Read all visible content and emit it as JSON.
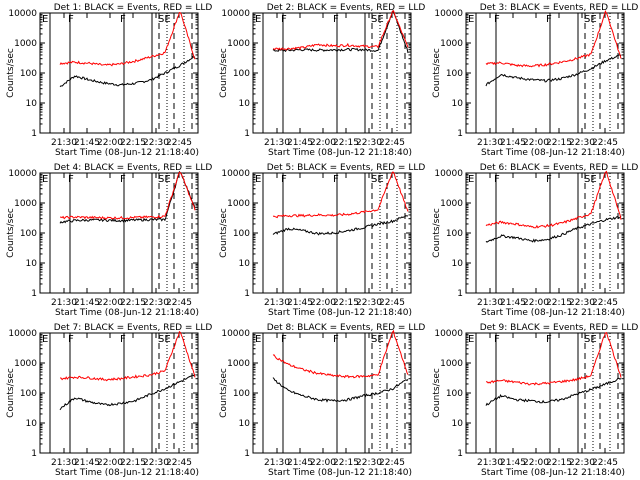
{
  "colors": {
    "events": "#000000",
    "lld": "#ff0000",
    "axis": "#000000"
  },
  "chart_data": [
    {
      "type": "line",
      "title": "Det 1: BLACK = Events, RED = LLD",
      "xlabel": "Start Time (08-Jun-12 21:18:40)",
      "ylabel": "Counts/sec",
      "yscale": "log",
      "ylim": [
        1,
        10000
      ],
      "x_ticks": [
        "21:30",
        "21:45",
        "22:00",
        "22:15",
        "22:30",
        "22:45"
      ],
      "y_ticks": [
        "1",
        "10",
        "100",
        "1000",
        "10000"
      ],
      "top_flags": [
        "E",
        "F",
        "F",
        "SE"
      ],
      "series": [
        {
          "key": "events",
          "values": [
            35,
            80,
            58,
            46,
            40,
            45,
            58,
            100,
            180,
            370
          ]
        },
        {
          "key": "lld",
          "values": [
            210,
            230,
            210,
            180,
            200,
            250,
            340,
            480,
            12000,
            280
          ]
        }
      ]
    },
    {
      "type": "line",
      "title": "Det 2: BLACK = Events, RED = LLD",
      "xlabel": "Start Time (08-Jun-12 21:18:40)",
      "ylabel": "Counts/sec",
      "yscale": "log",
      "ylim": [
        1,
        10000
      ],
      "x_ticks": [
        "21:30",
        "21:45",
        "22:00",
        "22:15",
        "22:30",
        "22:45"
      ],
      "y_ticks": [
        "1",
        "10",
        "100",
        "1000",
        "10000"
      ],
      "top_flags": [
        "E",
        "F",
        "F",
        "SE"
      ],
      "series": [
        {
          "key": "events",
          "values": [
            560,
            570,
            600,
            580,
            590,
            610,
            600,
            560,
            12000,
            500
          ]
        },
        {
          "key": "lld",
          "values": [
            640,
            650,
            700,
            900,
            800,
            850,
            780,
            750,
            12000,
            700
          ]
        }
      ]
    },
    {
      "type": "line",
      "title": "Det 3: BLACK = Events, RED = LLD",
      "xlabel": "Start Time (08-Jun-12 21:18:40)",
      "ylabel": "Counts/sec",
      "yscale": "log",
      "ylim": [
        1,
        10000
      ],
      "x_ticks": [
        "21:30",
        "21:45",
        "22:00",
        "22:15",
        "22:30",
        "22:45"
      ],
      "y_ticks": [
        "1",
        "10",
        "100",
        "1000",
        "10000"
      ],
      "top_flags": [
        "E",
        "F",
        "F",
        "SE"
      ],
      "series": [
        {
          "key": "events",
          "values": [
            40,
            90,
            70,
            60,
            55,
            65,
            90,
            140,
            260,
            400
          ]
        },
        {
          "key": "lld",
          "values": [
            200,
            220,
            180,
            170,
            190,
            230,
            300,
            420,
            12000,
            300
          ]
        }
      ]
    },
    {
      "type": "line",
      "title": "Det 4: BLACK = Events, RED = LLD",
      "xlabel": "Start Time (08-Jun-12 21:18:40)",
      "ylabel": "Counts/sec",
      "yscale": "log",
      "ylim": [
        1,
        10000
      ],
      "x_ticks": [
        "21:30",
        "21:45",
        "22:00",
        "22:15",
        "22:30",
        "22:45"
      ],
      "y_ticks": [
        "1",
        "10",
        "100",
        "1000",
        "10000"
      ],
      "top_flags": [
        "E",
        "F",
        "F",
        "SE"
      ],
      "series": [
        {
          "key": "events",
          "values": [
            230,
            260,
            270,
            270,
            260,
            270,
            280,
            280,
            12000,
            700
          ]
        },
        {
          "key": "lld",
          "values": [
            320,
            340,
            330,
            320,
            320,
            330,
            340,
            360,
            12000,
            600
          ]
        }
      ]
    },
    {
      "type": "line",
      "title": "Det 5: BLACK = Events, RED = LLD",
      "xlabel": "Start Time (08-Jun-12 21:18:40)",
      "ylabel": "Counts/sec",
      "yscale": "log",
      "ylim": [
        1,
        10000
      ],
      "x_ticks": [
        "21:30",
        "21:45",
        "22:00",
        "22:15",
        "22:30",
        "22:45"
      ],
      "y_ticks": [
        "1",
        "10",
        "100",
        "1000",
        "10000"
      ],
      "top_flags": [
        "E",
        "F",
        "F",
        "SE"
      ],
      "series": [
        {
          "key": "events",
          "values": [
            90,
            140,
            120,
            95,
            100,
            120,
            150,
            200,
            250,
            400
          ]
        },
        {
          "key": "lld",
          "values": [
            350,
            380,
            380,
            400,
            390,
            420,
            500,
            600,
            12000,
            500
          ]
        }
      ]
    },
    {
      "type": "line",
      "title": "Det 6: BLACK = Events, RED = LLD",
      "xlabel": "Start Time (08-Jun-12 21:18:40)",
      "ylabel": "Counts/sec",
      "yscale": "log",
      "ylim": [
        1,
        10000
      ],
      "x_ticks": [
        "21:30",
        "21:45",
        "22:00",
        "22:15",
        "22:30",
        "22:45"
      ],
      "y_ticks": [
        "1",
        "10",
        "100",
        "1000",
        "10000"
      ],
      "top_flags": [
        "E",
        "F",
        "F",
        "SE"
      ],
      "series": [
        {
          "key": "events",
          "values": [
            50,
            80,
            70,
            55,
            60,
            85,
            140,
            200,
            280,
            350
          ]
        },
        {
          "key": "lld",
          "values": [
            180,
            230,
            200,
            160,
            170,
            210,
            300,
            450,
            12000,
            300
          ]
        }
      ]
    },
    {
      "type": "line",
      "title": "Det 7: BLACK = Events, RED = LLD",
      "xlabel": "Start Time (08-Jun-12 21:18:40)",
      "ylabel": "Counts/sec",
      "yscale": "log",
      "ylim": [
        1,
        10000
      ],
      "x_ticks": [
        "21:30",
        "21:45",
        "22:00",
        "22:15",
        "22:30",
        "22:45"
      ],
      "y_ticks": [
        "1",
        "10",
        "100",
        "1000",
        "10000"
      ],
      "top_flags": [
        "E",
        "F",
        "F",
        "SE"
      ],
      "series": [
        {
          "key": "events",
          "values": [
            30,
            70,
            50,
            40,
            45,
            55,
            90,
            140,
            240,
            400
          ]
        },
        {
          "key": "lld",
          "values": [
            300,
            340,
            320,
            280,
            300,
            350,
            400,
            550,
            12000,
            350
          ]
        }
      ]
    },
    {
      "type": "line",
      "title": "Det 8: BLACK = Events, RED = LLD",
      "xlabel": "Start Time (08-Jun-12 21:18:40)",
      "ylabel": "Counts/sec",
      "yscale": "log",
      "ylim": [
        1,
        10000
      ],
      "x_ticks": [
        "21:30",
        "21:45",
        "22:00",
        "22:15",
        "22:30",
        "22:45"
      ],
      "y_ticks": [
        "1",
        "10",
        "100",
        "1000",
        "10000"
      ],
      "top_flags": [
        "E",
        "F",
        "F",
        "SE"
      ],
      "series": [
        {
          "key": "events",
          "values": [
            300,
            120,
            80,
            60,
            55,
            60,
            80,
            100,
            140,
            300
          ]
        },
        {
          "key": "lld",
          "values": [
            1800,
            900,
            600,
            450,
            380,
            350,
            360,
            400,
            12000,
            400
          ]
        }
      ]
    },
    {
      "type": "line",
      "title": "Det 9: BLACK = Events, RED = LLD",
      "xlabel": "Start Time (08-Jun-12 21:18:40)",
      "ylabel": "Counts/sec",
      "yscale": "log",
      "ylim": [
        1,
        10000
      ],
      "x_ticks": [
        "21:30",
        "21:45",
        "22:00",
        "22:15",
        "22:30",
        "22:45"
      ],
      "y_ticks": [
        "1",
        "10",
        "100",
        "1000",
        "10000"
      ],
      "top_flags": [
        "E",
        "F",
        "F",
        "SE"
      ],
      "series": [
        {
          "key": "events",
          "values": [
            40,
            80,
            60,
            55,
            50,
            60,
            90,
            130,
            200,
            320
          ]
        },
        {
          "key": "lld",
          "values": [
            220,
            260,
            230,
            200,
            210,
            240,
            280,
            380,
            12000,
            350
          ]
        }
      ]
    }
  ]
}
